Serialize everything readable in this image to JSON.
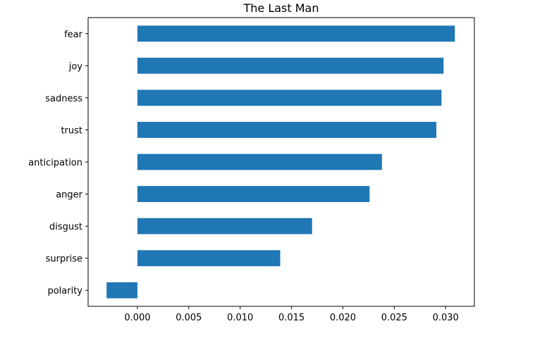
{
  "chart_data": {
    "type": "bar",
    "orientation": "horizontal",
    "title": "The Last Man",
    "xlabel": "",
    "ylabel": "",
    "categories": [
      "fear",
      "joy",
      "sadness",
      "trust",
      "anticipation",
      "anger",
      "disgust",
      "surprise",
      "polarity"
    ],
    "values": [
      0.0309,
      0.0298,
      0.0296,
      0.0291,
      0.0238,
      0.0226,
      0.017,
      0.0139,
      -0.003
    ],
    "xlim": [
      -0.0048,
      0.0328
    ],
    "x_ticks": [
      0.0,
      0.005,
      0.01,
      0.015,
      0.02,
      0.025,
      0.03
    ],
    "x_tick_labels": [
      "0.000",
      "0.005",
      "0.010",
      "0.015",
      "0.020",
      "0.025",
      "0.030"
    ],
    "bar_color": "#1f77b4",
    "grid": false,
    "legend": "none"
  }
}
